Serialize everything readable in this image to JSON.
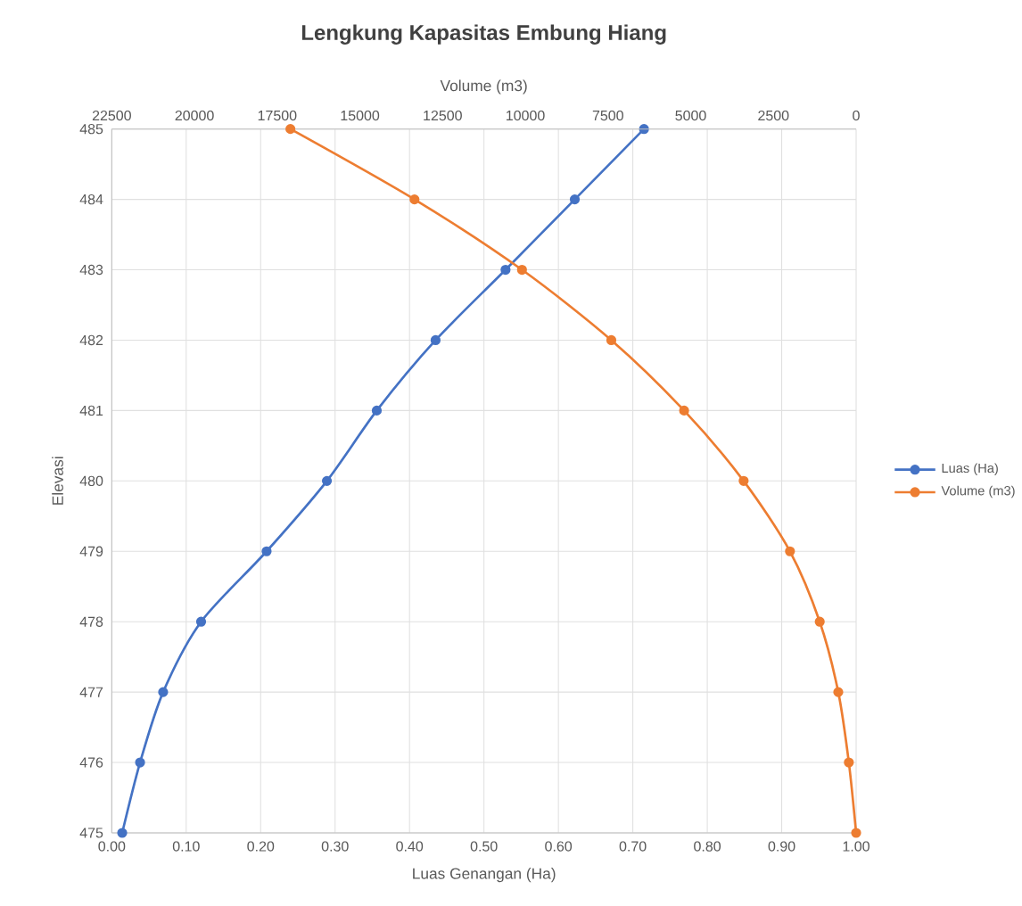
{
  "chart_data": {
    "type": "line",
    "title": "Lengkung Kapasitas Embung Hiang",
    "xlabel": "Luas Genangan (Ha)",
    "x2label": "Volume (m3)",
    "ylabel": "Elevasi",
    "series": [
      {
        "name": "Luas (Ha)",
        "color": "#4472c4",
        "x": [
          0.715,
          0.622,
          0.529,
          0.435,
          0.356,
          0.289,
          0.208,
          0.12,
          0.069,
          0.038,
          0.014
        ],
        "values": [
          485,
          484,
          483,
          482,
          481,
          480,
          479,
          478,
          477,
          476,
          475
        ]
      },
      {
        "name": "Volume (m3)",
        "color": "#ed7d31",
        "axis": "x2",
        "x": [
          17100,
          13350,
          10100,
          7400,
          5200,
          3400,
          2000,
          1100,
          540,
          220,
          0
        ],
        "values": [
          485,
          484,
          483,
          482,
          481,
          480,
          479,
          478,
          477,
          476,
          475
        ]
      }
    ],
    "xlim": [
      0,
      1
    ],
    "xticks": [
      {
        "value": 0,
        "label": "0.00"
      },
      {
        "value": 0.1,
        "label": "0.10"
      },
      {
        "value": 0.2,
        "label": "0.20"
      },
      {
        "value": 0.3,
        "label": "0.30"
      },
      {
        "value": 0.4,
        "label": "0.40"
      },
      {
        "value": 0.5,
        "label": "0.50"
      },
      {
        "value": 0.6,
        "label": "0.60"
      },
      {
        "value": 0.7,
        "label": "0.70"
      },
      {
        "value": 0.8,
        "label": "0.80"
      },
      {
        "value": 0.9,
        "label": "0.90"
      },
      {
        "value": 1,
        "label": "1.00"
      }
    ],
    "x2lim": [
      22500,
      0
    ],
    "x2ticks": [
      22500,
      20000,
      17500,
      15000,
      12500,
      10000,
      7500,
      5000,
      2500,
      0
    ],
    "ylim": [
      475,
      485
    ],
    "yticks": [
      475,
      476,
      477,
      478,
      479,
      480,
      481,
      482,
      483,
      484,
      485
    ],
    "grid": true,
    "legend": "right",
    "marker": "circle",
    "line_style": "solid"
  }
}
